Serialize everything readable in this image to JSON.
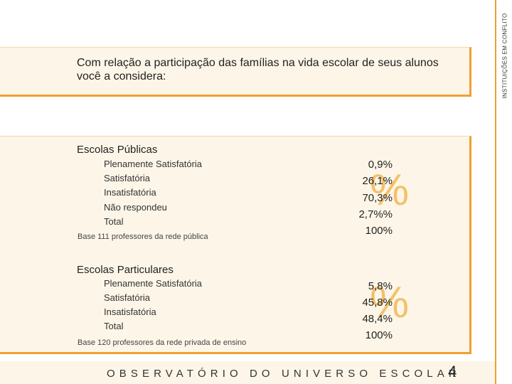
{
  "sidebar": {
    "label": "INSTITUIÇÕES EM CONFLITO"
  },
  "question": {
    "text": "Com relação a participação das famílias na vida escolar de seus alunos você a considera:"
  },
  "colors": {
    "accent": "#f0a030",
    "panel": "#fdf6e8"
  },
  "public": {
    "title": "Escolas Públicas",
    "items": [
      "Plenamente Satisfatória",
      "Satisfatória",
      "Insatisfatória",
      "Não respondeu",
      "Total"
    ],
    "values": [
      "0,9%",
      "26,1%",
      "70,3%",
      "2,7%%",
      "100%"
    ],
    "pct_symbol": "%",
    "base": "Base 111 professores da rede pública"
  },
  "private": {
    "title": "Escolas Particulares",
    "items": [
      "Plenamente Satisfatória",
      "Satisfatória",
      "Insatisfatória",
      "Total"
    ],
    "values": [
      "5,8%",
      "45,8%",
      "48,4%",
      "100%"
    ],
    "pct_symbol": "%",
    "base": "Base 120 professores da rede privada de ensino"
  },
  "footer": {
    "text": "OBSERVATÓRIO DO UNIVERSO ESCOLAR",
    "page_number": "4"
  }
}
